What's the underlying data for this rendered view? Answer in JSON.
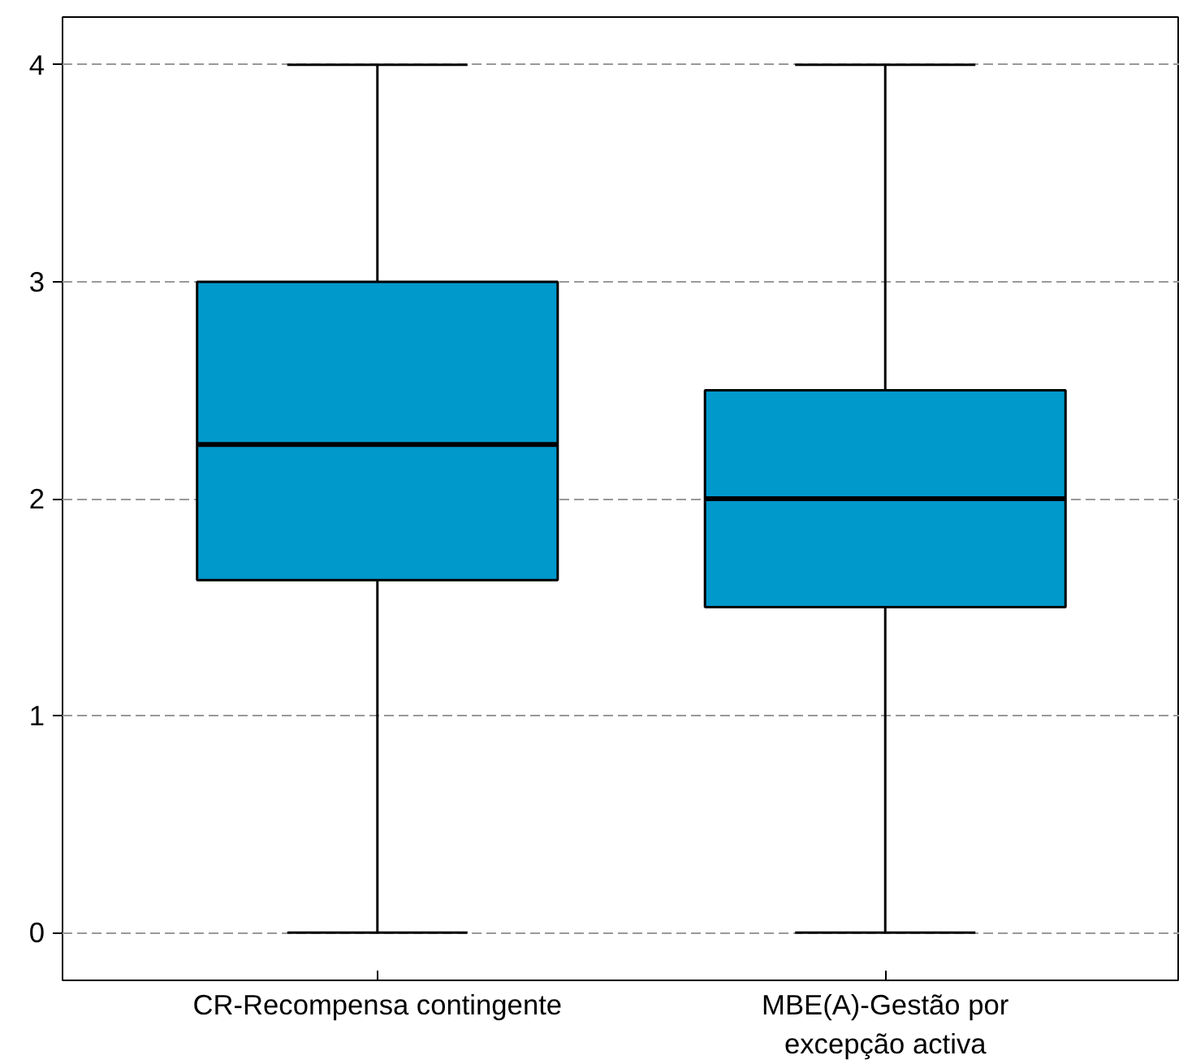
{
  "chart_data": {
    "type": "box",
    "categories": [
      "CR-Recompensa contingente",
      "MBE(A)-Gestão por excepção activa"
    ],
    "boxes": [
      {
        "low": 0,
        "q1": 1.625,
        "median": 2.25,
        "q3": 3,
        "high": 4
      },
      {
        "low": 0,
        "q1": 1.5,
        "median": 2,
        "q3": 2.5,
        "high": 4
      }
    ],
    "color": "#0099cc",
    "ylim": [
      -0.22,
      4.22
    ],
    "yticks": [
      0,
      1,
      2,
      3,
      4
    ],
    "grid": "y"
  }
}
